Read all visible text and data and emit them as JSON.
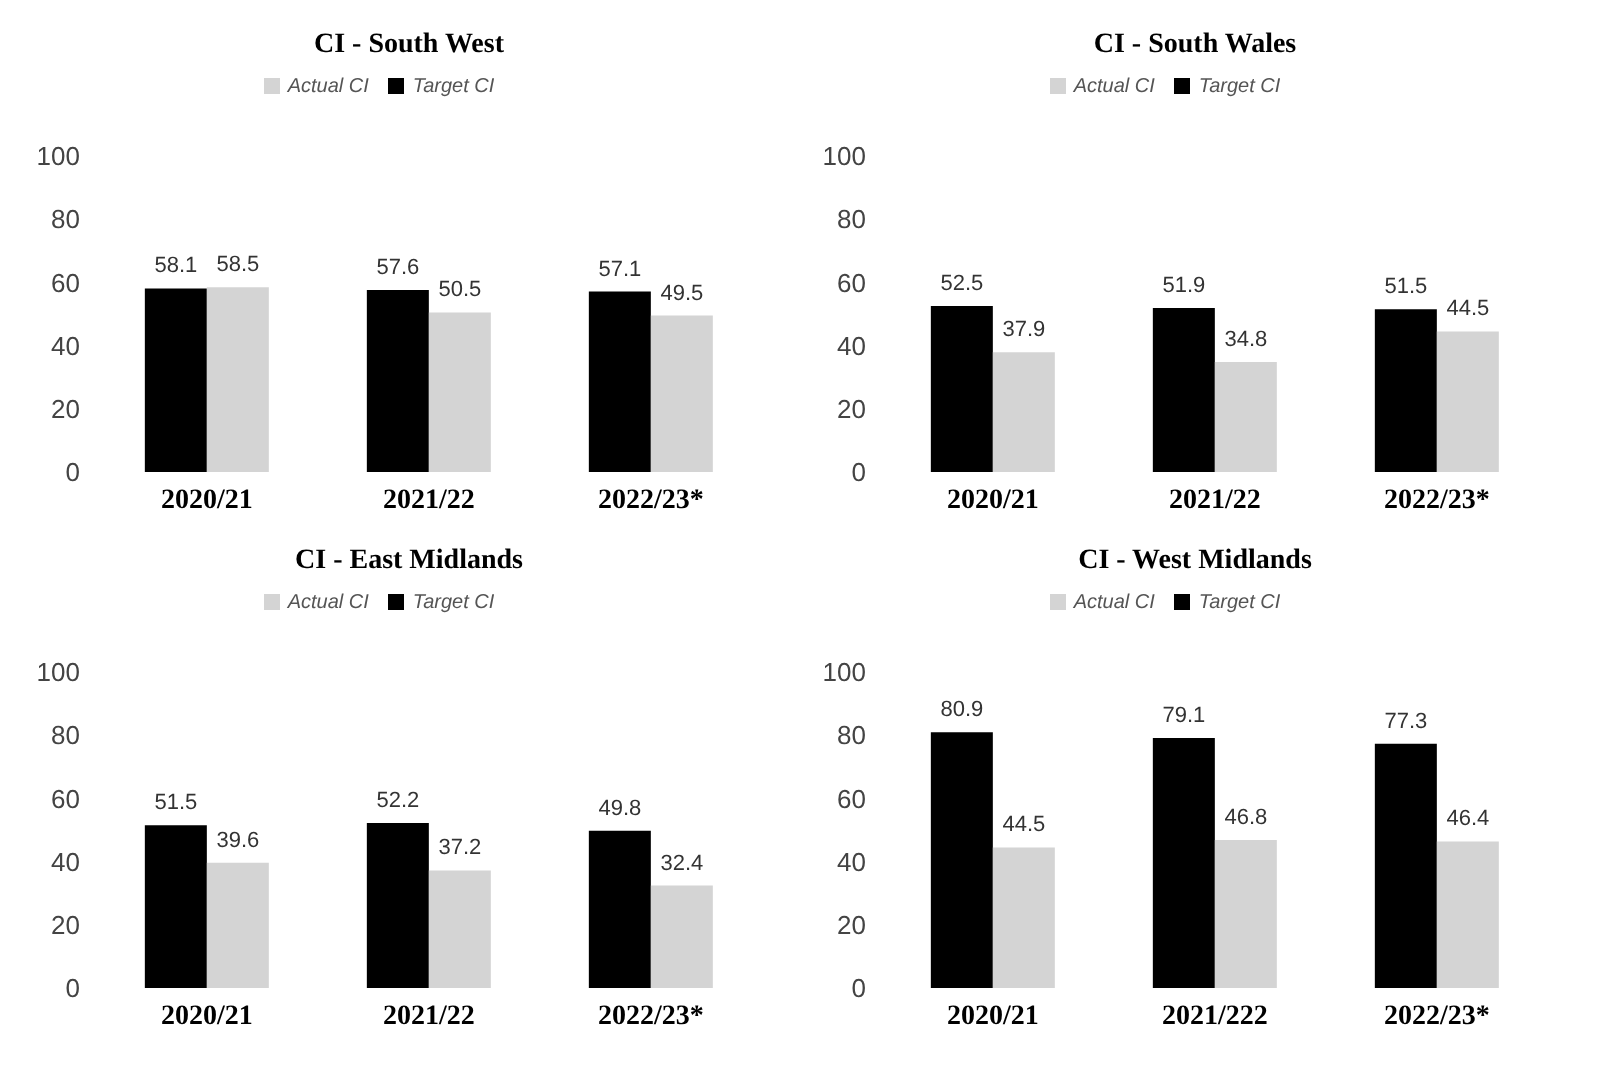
{
  "chart_data": [
    {
      "type": "bar",
      "title": "CI - South West",
      "categories": [
        "2020/21",
        "2021/22",
        "2022/23*"
      ],
      "series": [
        {
          "name": "Target CI",
          "color": "#000000",
          "values": [
            58.1,
            57.6,
            57.1
          ]
        },
        {
          "name": "Actual CI",
          "color": "#d4d4d4",
          "values": [
            58.5,
            50.5,
            49.5
          ]
        }
      ],
      "ylim": [
        0,
        100
      ],
      "yticks": [
        0,
        20,
        40,
        60,
        80,
        100
      ],
      "data_labels": true,
      "legend": "top",
      "grid": false
    },
    {
      "type": "bar",
      "title": "CI - South Wales",
      "categories": [
        "2020/21",
        "2021/22",
        "2022/23*"
      ],
      "series": [
        {
          "name": "Target CI",
          "color": "#000000",
          "values": [
            52.5,
            51.9,
            51.5
          ]
        },
        {
          "name": "Actual CI",
          "color": "#d4d4d4",
          "values": [
            37.9,
            34.8,
            44.5
          ]
        }
      ],
      "ylim": [
        0,
        100
      ],
      "yticks": [
        0,
        20,
        40,
        60,
        80,
        100
      ],
      "data_labels": true,
      "legend": "top",
      "grid": false
    },
    {
      "type": "bar",
      "title": "CI - East Midlands",
      "categories": [
        "2020/21",
        "2021/22",
        "2022/23*"
      ],
      "series": [
        {
          "name": "Target CI",
          "color": "#000000",
          "values": [
            51.5,
            52.2,
            49.8
          ]
        },
        {
          "name": "Actual CI",
          "color": "#d4d4d4",
          "values": [
            39.6,
            37.2,
            32.4
          ]
        }
      ],
      "ylim": [
        0,
        100
      ],
      "yticks": [
        0,
        20,
        40,
        60,
        80,
        100
      ],
      "data_labels": true,
      "legend": "top",
      "grid": false
    },
    {
      "type": "bar",
      "title": "CI - West Midlands",
      "categories": [
        "2020/21",
        "2021/222",
        "2022/23*"
      ],
      "series": [
        {
          "name": "Target CI",
          "color": "#000000",
          "values": [
            80.9,
            79.1,
            77.3
          ]
        },
        {
          "name": "Actual CI",
          "color": "#d4d4d4",
          "values": [
            44.5,
            46.8,
            46.4
          ]
        }
      ],
      "ylim": [
        0,
        100
      ],
      "yticks": [
        0,
        20,
        40,
        60,
        80,
        100
      ],
      "data_labels": true,
      "legend": "top",
      "grid": false
    }
  ]
}
